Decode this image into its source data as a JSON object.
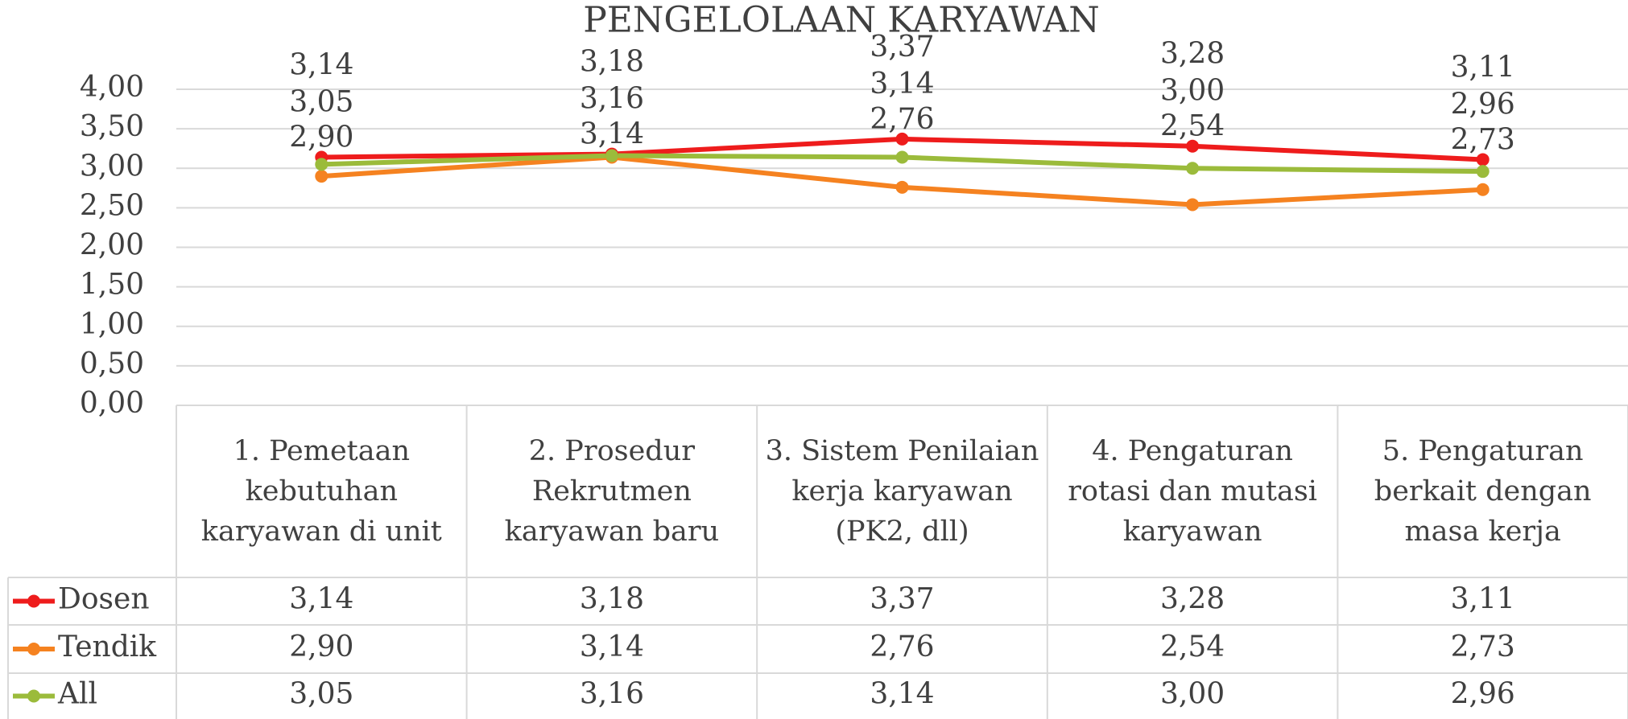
{
  "chart_data": {
    "type": "line",
    "title": "PENGELOLAAN KARYAWAN",
    "categories": [
      "1. Pemetaan kebutuhan karyawan di unit",
      "2. Prosedur Rekrutmen karyawan baru",
      "3. Sistem Penilaian kerja karyawan (PK2, dll)",
      "4. Pengaturan rotasi dan mutasi karyawan",
      "5. Pengaturan berkait dengan masa kerja"
    ],
    "series": [
      {
        "name": "Dosen",
        "color": "#ee1c1c",
        "values": [
          3.14,
          3.18,
          3.37,
          3.28,
          3.11
        ],
        "value_labels": [
          "3,14",
          "3,18",
          "3,37",
          "3,28",
          "3,11"
        ]
      },
      {
        "name": "Tendik",
        "color": "#f58220",
        "values": [
          2.9,
          3.14,
          2.76,
          2.54,
          2.73
        ],
        "value_labels": [
          "2,90",
          "3,14",
          "2,76",
          "2,54",
          "2,73"
        ]
      },
      {
        "name": "All",
        "color": "#9bbb3b",
        "values": [
          3.05,
          3.16,
          3.14,
          3.0,
          2.96
        ],
        "value_labels": [
          "3,05",
          "3,16",
          "3,14",
          "3,00",
          "2,96"
        ]
      }
    ],
    "ylim": [
      0,
      4
    ],
    "yticks": [
      {
        "value": 0,
        "label": "0,00"
      },
      {
        "value": 0.5,
        "label": "0,50"
      },
      {
        "value": 1,
        "label": "1,00"
      },
      {
        "value": 1.5,
        "label": "1,50"
      },
      {
        "value": 2,
        "label": "2,00"
      },
      {
        "value": 2.5,
        "label": "2,50"
      },
      {
        "value": 3,
        "label": "3,00"
      },
      {
        "value": 3.5,
        "label": "3,50"
      },
      {
        "value": 4,
        "label": "4,00"
      }
    ],
    "grid": true,
    "data_table": true
  }
}
